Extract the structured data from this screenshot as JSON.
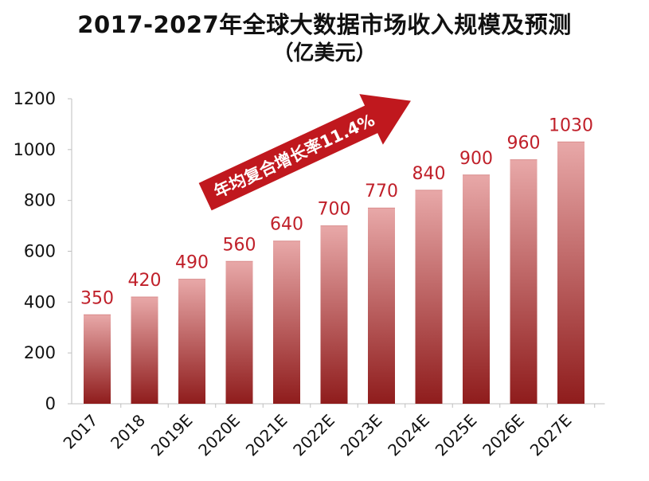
{
  "title_line1": "2017-2027年全球大数据市场收入规模及预测",
  "title_line2": "（亿美元）",
  "chart_data": {
    "type": "bar",
    "title": "2017-2027年全球大数据市场收入规模及预测（亿美元）",
    "categories": [
      "2017",
      "2018",
      "2019E",
      "2020E",
      "2021E",
      "2022E",
      "2023E",
      "2024E",
      "2025E",
      "2026E",
      "2027E"
    ],
    "values": [
      350,
      420,
      490,
      560,
      640,
      700,
      770,
      840,
      900,
      960,
      1030
    ],
    "ylim": [
      0,
      1200
    ],
    "yticks": [
      0,
      200,
      400,
      600,
      800,
      1000,
      1200
    ],
    "annotation": "年均复合增长率11.4%",
    "grid": false,
    "legend": "none",
    "colors": {
      "bar_top": "#e8a8a8",
      "bar_bottom": "#8f1c1c",
      "label": "#c0202a",
      "arrow": "#c0181e"
    }
  }
}
